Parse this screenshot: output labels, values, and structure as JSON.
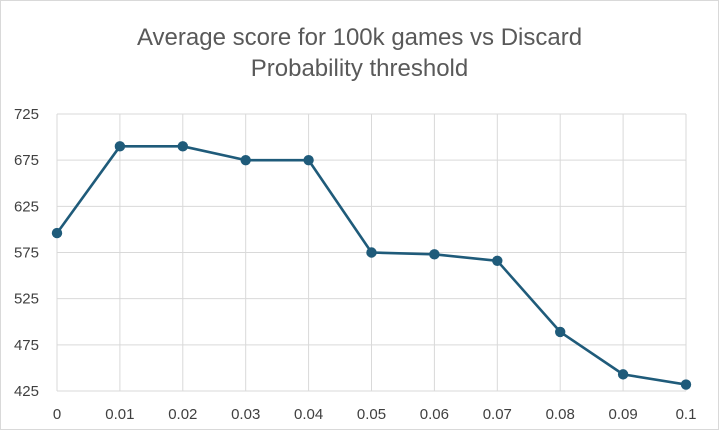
{
  "chart_data": {
    "type": "line",
    "title_lines": [
      "Average score for 100k games vs Discard",
      "Probability threshold"
    ],
    "xlabel": "",
    "ylabel": "",
    "x": [
      "0",
      "0.01",
      "0.02",
      "0.03",
      "0.04",
      "0.05",
      "0.06",
      "0.07",
      "0.08",
      "0.09",
      "0.1"
    ],
    "series": [
      {
        "values": [
          596,
          690,
          690,
          675,
          675,
          575,
          573,
          566,
          489,
          443,
          432
        ]
      }
    ],
    "ylim": [
      425,
      725
    ],
    "yticks": [
      "425",
      "475",
      "525",
      "575",
      "625",
      "675",
      "725"
    ],
    "grid": true,
    "legend": "none",
    "colors": {
      "line": "#1f5b7a",
      "grid": "#d9d9d9",
      "text": "#404040",
      "title": "#595959"
    }
  }
}
